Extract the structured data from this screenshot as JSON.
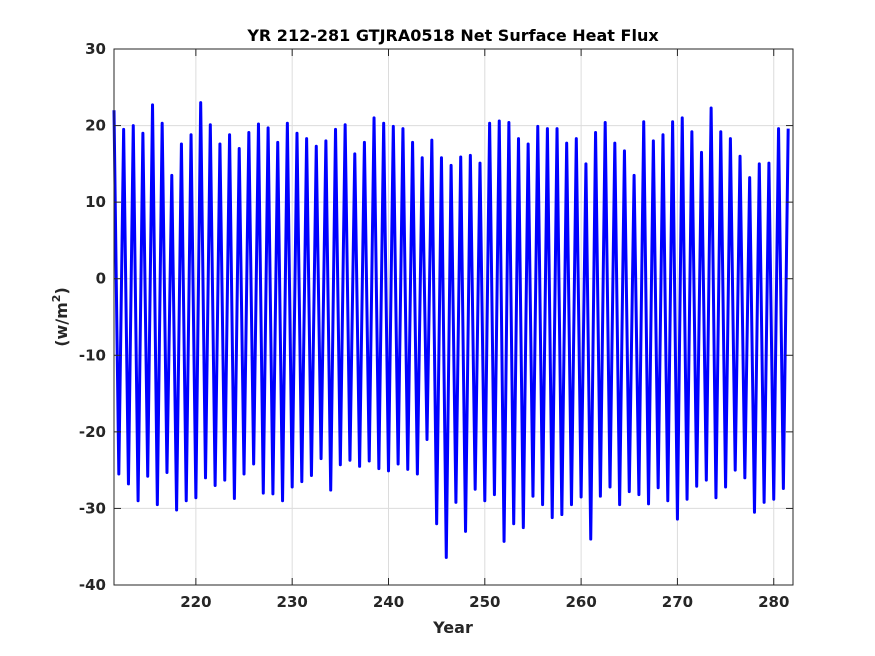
{
  "chart_data": {
    "type": "line",
    "title": "YR 212-281 GTJRA0518 Net Surface Heat Flux",
    "xlabel": "Year",
    "ylabel_main": "(w/m",
    "ylabel_sup": "2",
    "ylabel_close": ")",
    "xlim": [
      211.5,
      282
    ],
    "ylim": [
      -40,
      30
    ],
    "xticks": [
      220,
      230,
      240,
      250,
      260,
      270,
      280
    ],
    "yticks": [
      -40,
      -30,
      -20,
      -10,
      0,
      10,
      20,
      30
    ],
    "grid": true,
    "series": [
      {
        "color": "#0000ff",
        "period_years": 1,
        "cycle_max": [
          22.0,
          19.5,
          20.0,
          19.0,
          22.7,
          20.3,
          13.5,
          17.6,
          18.8,
          23.0,
          20.1,
          17.6,
          18.8,
          17.0,
          19.1,
          20.2,
          19.7,
          17.8,
          20.3,
          19.0,
          18.3,
          17.3,
          18.0,
          19.5,
          20.1,
          16.3,
          17.8,
          21.0,
          20.3,
          19.9,
          19.6,
          17.8,
          15.8,
          18.1,
          15.8,
          14.8,
          15.9,
          16.1,
          15.1,
          20.3,
          20.6,
          20.4,
          18.3,
          17.6,
          19.9,
          19.6,
          19.6,
          17.7,
          18.3,
          15.0,
          19.1,
          20.4,
          17.7,
          16.7,
          13.5,
          20.5,
          18.0,
          18.8,
          20.5,
          21.0,
          19.2,
          16.5,
          22.3,
          19.2,
          18.3,
          16.0,
          13.2,
          15.0,
          15.1,
          19.6
        ],
        "cycle_min": [
          -25.5,
          -26.8,
          -29.0,
          -25.8,
          -29.5,
          -25.3,
          -30.2,
          -29.0,
          -28.6,
          -26.0,
          -27.0,
          -26.3,
          -28.7,
          -25.5,
          -24.2,
          -28.0,
          -28.1,
          -29.0,
          -27.2,
          -26.5,
          -25.7,
          -23.5,
          -27.6,
          -24.3,
          -23.7,
          -24.5,
          -23.8,
          -24.8,
          -25.1,
          -24.2,
          -24.9,
          -25.5,
          -21.0,
          -32.0,
          -36.4,
          -29.2,
          -33.0,
          -27.5,
          -29.0,
          -28.2,
          -34.3,
          -32.0,
          -32.5,
          -28.4,
          -29.5,
          -31.2,
          -30.8,
          -29.5,
          -28.5,
          -34.0,
          -28.4,
          -27.2,
          -29.5,
          -27.8,
          -28.2,
          -29.4,
          -27.3,
          -29.0,
          -31.4,
          -28.8,
          -27.1,
          -26.3,
          -28.6,
          -27.2,
          -25.0,
          -26.0,
          -30.5,
          -29.2,
          -28.8,
          -27.4
        ]
      }
    ]
  }
}
